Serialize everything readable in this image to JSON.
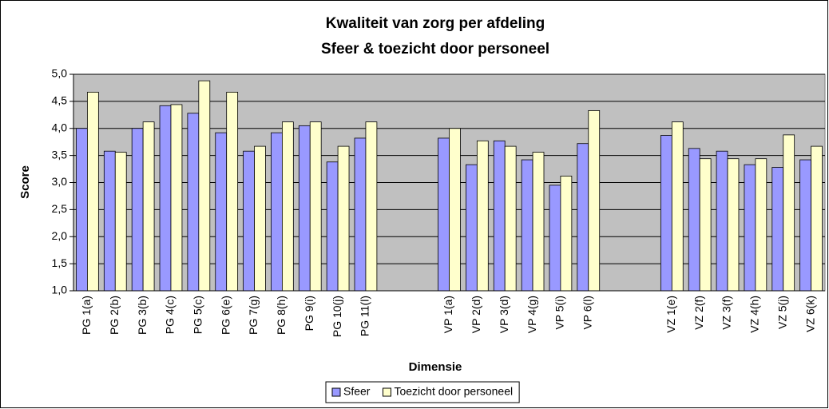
{
  "chart_data": {
    "type": "bar",
    "title": "Kwaliteit van zorg per afdeling",
    "subtitle": "Sfeer & toezicht door personeel",
    "y_label": "Score",
    "x_label": "Dimensie",
    "categories": [
      "PG 1(a)",
      "PG 2(b)",
      "PG 3(b)",
      "PG 4(c)",
      "PG 5(c)",
      "PG 6(e)",
      "PG 7(g)",
      "PG 8(h)",
      "PG 9(i)",
      "PG 10(j)",
      "PG 11(l)",
      null,
      null,
      "VP 1(a)",
      "VP 2(d)",
      "VP 3(d)",
      "VP 4(g)",
      "VP 5(i)",
      "VP 6(l)",
      null,
      null,
      "VZ 1(e)",
      "VZ 2(f)",
      "VZ 3(f)",
      "VZ 4(h)",
      "VZ 5(j)",
      "VZ 6(k)"
    ],
    "series": [
      {
        "name": "Sfeer",
        "color": "#9999ff",
        "values": [
          4.0,
          3.58,
          4.0,
          4.42,
          4.28,
          3.92,
          3.58,
          3.92,
          4.05,
          3.38,
          3.82,
          null,
          null,
          3.82,
          3.33,
          3.77,
          3.42,
          2.95,
          3.72,
          null,
          null,
          3.87,
          3.63,
          3.58,
          3.33,
          3.28,
          3.42
        ]
      },
      {
        "name": "Toezicht door personeel",
        "color": "#ffffcc",
        "values": [
          4.67,
          3.56,
          4.12,
          4.44,
          4.88,
          4.67,
          3.67,
          4.12,
          4.12,
          3.67,
          4.12,
          null,
          null,
          4.0,
          3.77,
          3.67,
          3.56,
          3.12,
          4.33,
          null,
          null,
          4.12,
          3.44,
          3.44,
          3.44,
          3.88,
          3.67
        ]
      }
    ],
    "ylim": [
      1,
      5
    ],
    "yticks": [
      {
        "value": 1,
        "label": "1,0"
      },
      {
        "value": 1.5,
        "label": "1,5"
      },
      {
        "value": 2,
        "label": "2,0"
      },
      {
        "value": 2.5,
        "label": "2,5"
      },
      {
        "value": 3,
        "label": "3,0"
      },
      {
        "value": 3.5,
        "label": "3,5"
      },
      {
        "value": 4,
        "label": "4,0"
      },
      {
        "value": 4.5,
        "label": "4,5"
      },
      {
        "value": 5,
        "label": "5,0"
      }
    ],
    "grid": true,
    "plot_background": "#c0c0c0",
    "legend": "bottom"
  }
}
